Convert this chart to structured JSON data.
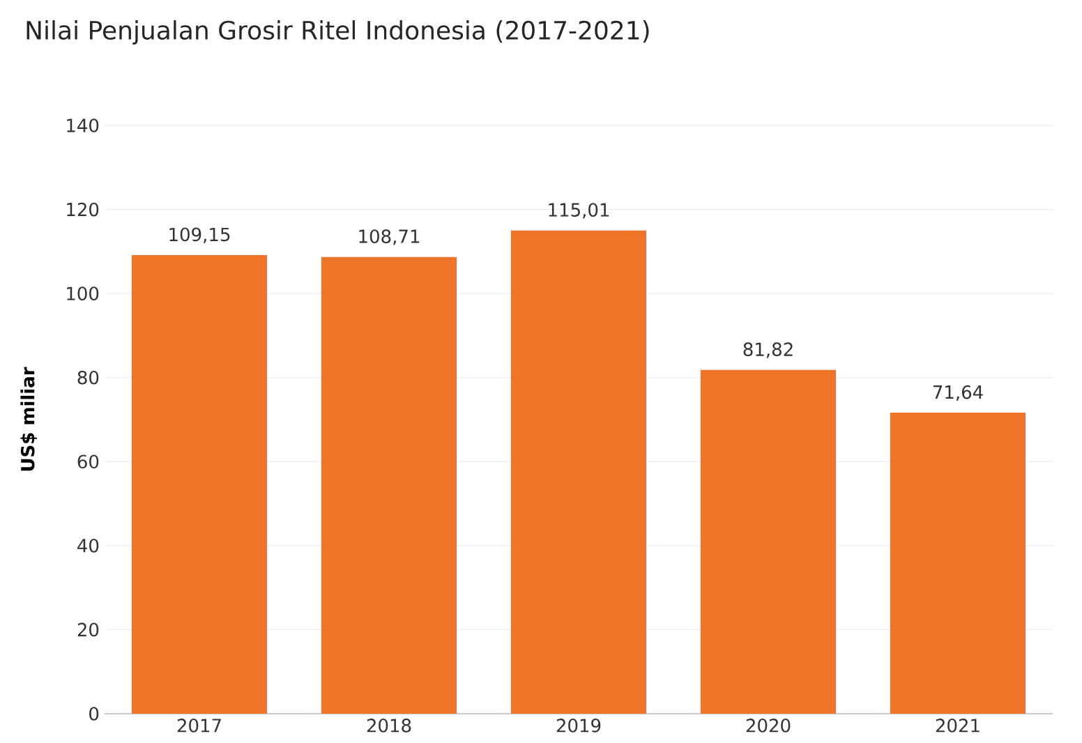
{
  "chart_data": {
    "type": "bar",
    "title": "Nilai Penjualan Grosir Ritel Indonesia (2017-2021)",
    "ylabel": "US$ miliar",
    "categories": [
      "2017",
      "2018",
      "2019",
      "2020",
      "2021"
    ],
    "values": [
      109.15,
      108.71,
      115.01,
      81.82,
      71.64
    ],
    "value_labels": [
      "109,15",
      "108,71",
      "115,01",
      "81,82",
      "71,64"
    ],
    "color": "#f07427",
    "ylim": [
      0,
      140
    ],
    "yticks": [
      0,
      20,
      40,
      60,
      80,
      100,
      120,
      140
    ],
    "grid": "y"
  }
}
